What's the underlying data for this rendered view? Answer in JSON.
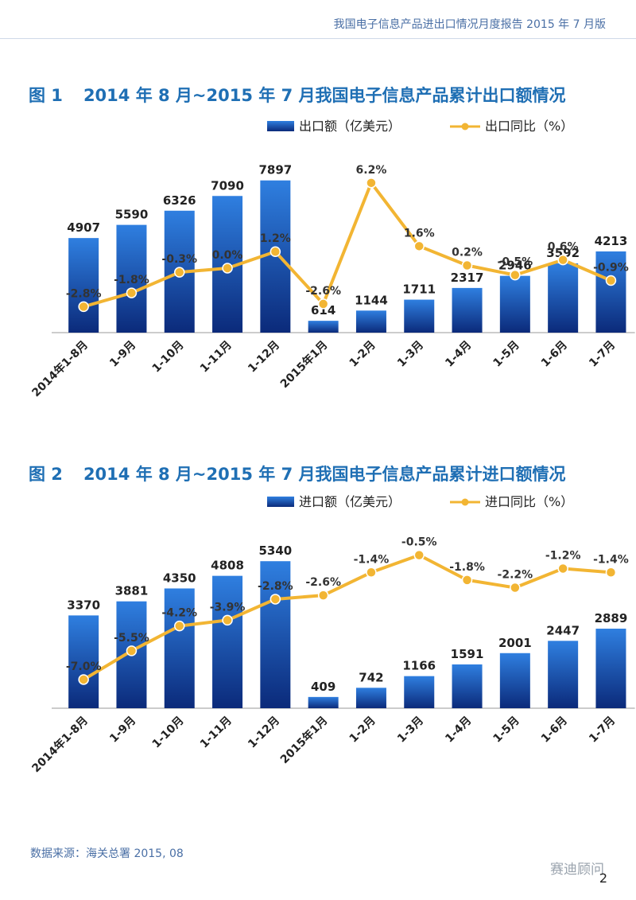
{
  "header": {
    "text": "我国电子信息产品进出口情况月度报告    2015 年 7 月版"
  },
  "colors": {
    "bar_top": "#2f7fe0",
    "bar_bottom": "#0b2a7a",
    "line": "#f2b533",
    "title": "#1f6fb4"
  },
  "chart_data": [
    {
      "type": "bar",
      "fig_no": "图 1",
      "title": "2014 年 8 月~2015 年 7 月我国电子信息产品累计出口额情况",
      "categories": [
        "2014年1-8月",
        "1-9月",
        "1-10月",
        "1-11月",
        "1-12月",
        "2015年1月",
        "1-2月",
        "1-3月",
        "1-4月",
        "1-5月",
        "1-6月",
        "1-7月"
      ],
      "series": [
        {
          "name": "出口额（亿美元）",
          "kind": "bar",
          "values": [
            4907,
            5590,
            6326,
            7090,
            7897,
            614,
            1144,
            1711,
            2317,
            2946,
            3592,
            4213
          ],
          "labels": [
            "4907",
            "5590",
            "6326",
            "7090",
            "7897",
            "614",
            "1144",
            "1711",
            "2317",
            "2946",
            "3592",
            "4213"
          ]
        },
        {
          "name": "出口同比（%）",
          "kind": "line",
          "values": [
            -2.8,
            -1.8,
            -0.3,
            0.0,
            1.2,
            -2.6,
            6.2,
            1.6,
            0.2,
            -0.5,
            0.6,
            -0.9
          ],
          "labels": [
            "-2.8%",
            "-1.8%",
            "-0.3%",
            "0.0%",
            "1.2%",
            "-2.6%",
            "6.2%",
            "1.6%",
            "0.2%",
            "-0.5%",
            "0.6%",
            "-0.9%"
          ]
        }
      ],
      "bar_ylim": [
        0,
        9000
      ],
      "line_ylim": [
        -3.3,
        7.0
      ],
      "legend": "top"
    },
    {
      "type": "bar",
      "fig_no": "图 2",
      "title": "2014 年 8 月~2015 年 7 月我国电子信息产品累计进口额情况",
      "categories": [
        "2014年1-8月",
        "1-9月",
        "1-10月",
        "1-11月",
        "1-12月",
        "2015年1月",
        "1-2月",
        "1-3月",
        "1-4月",
        "1-5月",
        "1-6月",
        "1-7月"
      ],
      "series": [
        {
          "name": "进口额（亿美元）",
          "kind": "bar",
          "values": [
            3370,
            3881,
            4350,
            4808,
            5340,
            409,
            742,
            1166,
            1591,
            2001,
            2447,
            2889
          ],
          "labels": [
            "3370",
            "3881",
            "4350",
            "4808",
            "5340",
            "409",
            "742",
            "1166",
            "1591",
            "2001",
            "2447",
            "2889"
          ]
        },
        {
          "name": "进口同比（%）",
          "kind": "line",
          "values": [
            -7.0,
            -5.5,
            -4.2,
            -3.9,
            -2.8,
            -2.6,
            -1.4,
            -0.5,
            -1.8,
            -2.2,
            -1.2,
            -1.4
          ],
          "labels": [
            "-7.0%",
            "-5.5%",
            "-4.2%",
            "-3.9%",
            "-2.8%",
            "-2.6%",
            "-1.4%",
            "-0.5%",
            "-1.8%",
            "-2.2%",
            "-1.2%",
            "-1.4%"
          ]
        }
      ],
      "bar_ylim": [
        0,
        6300
      ],
      "line_ylim": [
        -7.5,
        -0.1
      ],
      "legend": "top"
    }
  ],
  "footer": {
    "source": "数据来源：海关总署  2015, 08",
    "watermark": "赛迪顾问",
    "page": "2"
  }
}
